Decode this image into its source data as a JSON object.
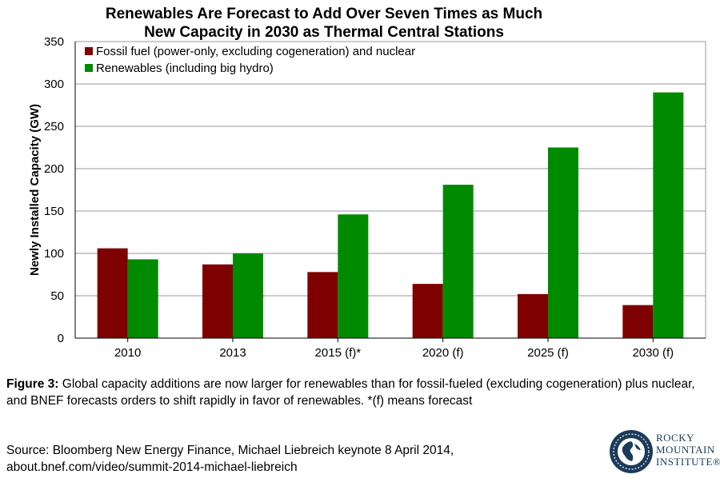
{
  "title_lines": [
    "Renewables Are Forecast to Add Over Seven Times as Much",
    "New Capacity in 2030 as Thermal Central Stations"
  ],
  "caption": {
    "label": "Figure 3:",
    "text": " Global capacity additions are now larger for renewables than for fossil-fueled (excluding cogeneration) plus nuclear, and BNEF forecasts orders to shift rapidly in favor of renewables. *(f) means forecast"
  },
  "source_lines": [
    "Source: Bloomberg New Energy Finance, Michael Liebreich keynote 8 April 2014,",
    "about.bnef.com/video/summit-2014-michael-liebreich"
  ],
  "logo": {
    "lines": [
      "ROCKY",
      "MOUNTAIN",
      "INSTITUTE®"
    ],
    "icon": "globe-icon"
  },
  "colors": {
    "fossil": "#7f0000",
    "renewables": "#008a00",
    "grid": "#9a9a9a",
    "logo": "#1b3b59"
  },
  "chart_data": {
    "type": "bar",
    "title": "Renewables Are Forecast to Add Over Seven Times as Much New Capacity in 2030 as Thermal Central Stations",
    "categories": [
      "2010",
      "2013",
      "2015 (f)*",
      "2020 (f)",
      "2025 (f)",
      "2030 (f)"
    ],
    "series": [
      {
        "name": "Fossil fuel (power-only, excluding cogeneration) and nuclear",
        "values": [
          106,
          87,
          78,
          64,
          52,
          39
        ]
      },
      {
        "name": "Renewables (including big hydro)",
        "values": [
          93,
          100,
          146,
          181,
          225,
          290
        ]
      }
    ],
    "xlabel": "",
    "ylabel": "Newly Installed Capacity (GW)",
    "ylim": [
      0,
      350
    ],
    "yticks": [
      0,
      50,
      100,
      150,
      200,
      250,
      300,
      350
    ],
    "grid": true,
    "legend_position": "top-left"
  }
}
